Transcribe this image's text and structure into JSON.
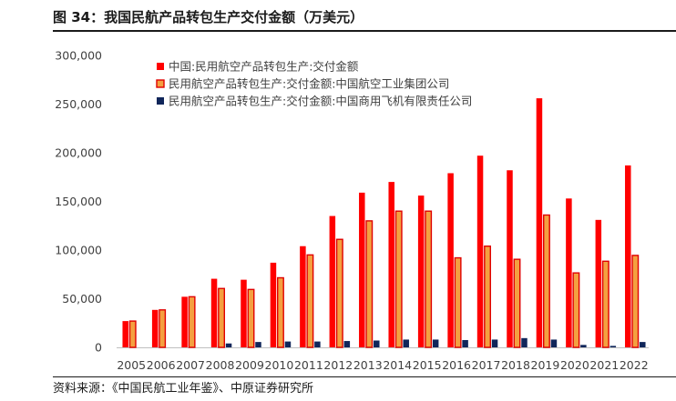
{
  "figure": {
    "title": "图 34：我国民航产品转包生产交付金额（万美元）",
    "source": "资料来源：《中国民航工业年鉴》、中原证券研究所"
  },
  "colors": {
    "series1": "#ff0000",
    "series2_fill": "#f4a040",
    "series2_border": "#e00000",
    "series3": "#10265a",
    "axis": "#bfbfbf",
    "text": "#404040"
  },
  "chart_data": {
    "type": "bar",
    "title": "",
    "xlabel": "",
    "ylabel": "",
    "ylim": [
      0,
      300000
    ],
    "yticks": [
      0,
      50000,
      100000,
      150000,
      200000,
      250000,
      300000
    ],
    "ytick_labels": [
      "0",
      "50,000",
      "100,000",
      "150,000",
      "200,000",
      "250,000",
      "300,000"
    ],
    "grid": false,
    "legend_position": "top-left",
    "categories": [
      "2005",
      "2006",
      "2007",
      "2008",
      "2009",
      "2010",
      "2011",
      "2012",
      "2013",
      "2014",
      "2015",
      "2016",
      "2017",
      "2018",
      "2019",
      "2020",
      "2021",
      "2022"
    ],
    "series": [
      {
        "name": "中国:民用航空产品转包生产:交付金额",
        "color": "#ff0000",
        "values": [
          27000,
          38500,
          52000,
          70500,
          69500,
          87000,
          104000,
          135000,
          159000,
          170000,
          156000,
          179000,
          197000,
          182000,
          256000,
          153000,
          131000,
          187000
        ]
      },
      {
        "name": "民用航空产品转包生产:交付金额:中国航空工业集团公司",
        "color": "#f4a040",
        "values": [
          27000,
          38500,
          52000,
          60500,
          59500,
          71500,
          95000,
          111000,
          130000,
          140000,
          140000,
          92000,
          104000,
          90500,
          136000,
          76500,
          88500,
          94500
        ]
      },
      {
        "name": "民用航空产品转包生产:交付金额:中国商用飞机有限责任公司",
        "color": "#10265a",
        "values": [
          0,
          0,
          0,
          4000,
          5500,
          6000,
          6000,
          6500,
          7000,
          8000,
          8000,
          7500,
          8000,
          9500,
          8000,
          2500,
          1500,
          5500
        ]
      }
    ]
  }
}
